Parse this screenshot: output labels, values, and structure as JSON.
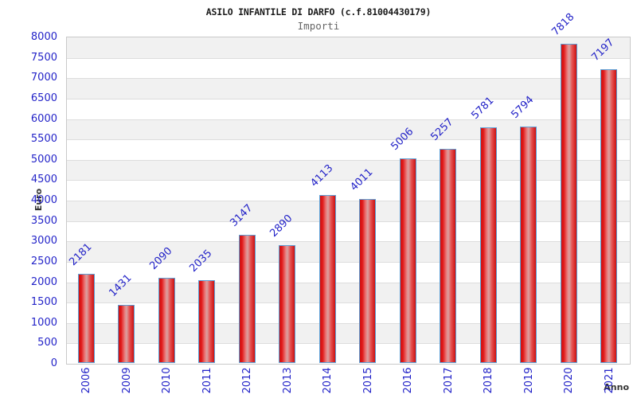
{
  "header": {
    "title": "ASILO INFANTILE DI DARFO (c.f.81004430179)",
    "subtitle": "Importi"
  },
  "chart_data": {
    "type": "bar",
    "title": "ASILO INFANTILE DI DARFO (c.f.81004430179)",
    "subtitle": "Importi",
    "categories": [
      "2006",
      "2009",
      "2010",
      "2011",
      "2012",
      "2013",
      "2014",
      "2015",
      "2016",
      "2017",
      "2018",
      "2019",
      "2020",
      "2021"
    ],
    "values": [
      2181,
      1431,
      2090,
      2035,
      3147,
      2890,
      4113,
      4011,
      5006,
      5257,
      5781,
      5794,
      7818,
      7197
    ],
    "xlabel": "Anno",
    "ylabel": "Euro",
    "ylim": [
      0,
      8000
    ],
    "ytick_step": 500,
    "yticks": [
      0,
      500,
      1000,
      1500,
      2000,
      2500,
      3000,
      3500,
      4000,
      4500,
      5000,
      5500,
      6000,
      6500,
      7000,
      7500,
      8000
    ],
    "legend": "none",
    "grid": "horizontal-bands",
    "value_labels_rotation_deg": -45,
    "category_labels_rotation_deg": -90,
    "colors": {
      "bar_red": "#e11818",
      "bar_red_dark": "#cc1212",
      "bar_highlight": "#d9a1a1",
      "bar_border": "#5b9fd6",
      "axis_text_blue": "#2323c8",
      "band_gray": "#f1f1f1",
      "band_white": "#ffffff",
      "gridline": "#dddddd",
      "plot_border": "#c9c9c9",
      "title_text": "#1a1a1a",
      "subtitle_text": "#666666",
      "axis_title_text": "#333333"
    }
  }
}
